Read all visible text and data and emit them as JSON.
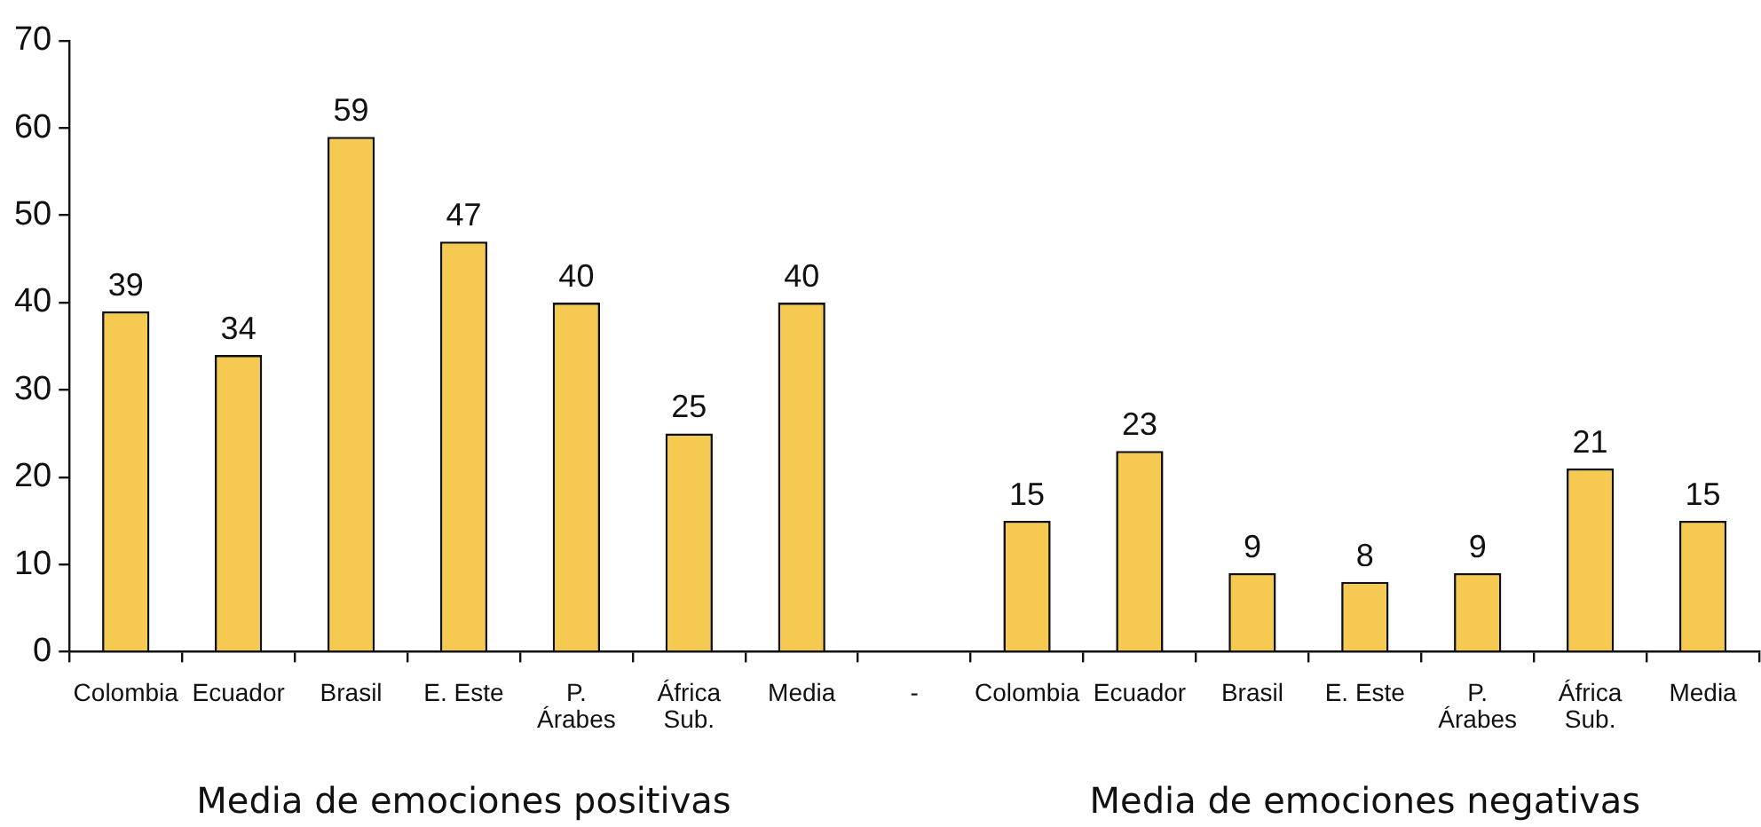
{
  "chart_data": {
    "type": "bar",
    "categories": [
      "Colombia",
      "Ecuador",
      "Brasil",
      "E. Este",
      "P.\nÁrabes",
      "África\nSub.",
      "Media",
      "-",
      "Colombia",
      "Ecuador",
      "Brasil",
      "E. Este",
      "P.\nÁrabes",
      "África\nSub.",
      "Media"
    ],
    "values": [
      39,
      34,
      59,
      47,
      40,
      25,
      40,
      null,
      15,
      23,
      9,
      8,
      9,
      21,
      15
    ],
    "color": "#f6c951",
    "ylim": [
      0,
      70
    ],
    "yticks": [
      0,
      10,
      20,
      30,
      40,
      50,
      60,
      70
    ],
    "grid": false,
    "legend": false,
    "data_labels": true,
    "annotations": [
      "Media de emociones positivas",
      "Media de emociones negativas"
    ]
  }
}
